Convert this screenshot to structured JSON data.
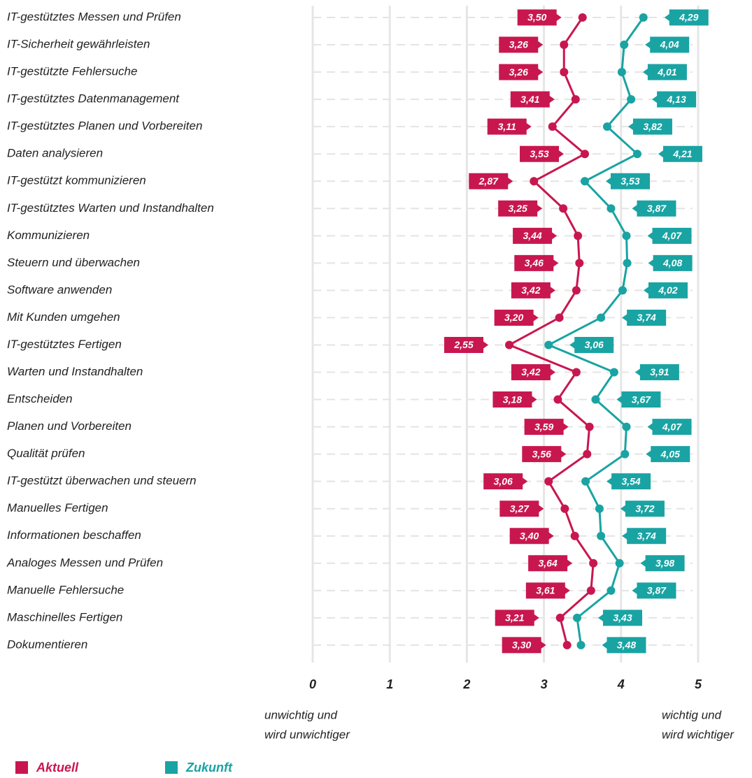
{
  "chart_data": {
    "type": "line",
    "orientation": "horizontal",
    "categories": [
      "IT-gestütztes Messen und Prüfen",
      "IT-Sicherheit gewährleisten",
      "IT-gestützte Fehlersuche",
      "IT-gestütztes Datenmanagement",
      "IT-gestütztes Planen und Vorbereiten",
      "Daten analysieren",
      "IT-gestützt kommunizieren",
      "IT-gestütztes Warten und Instandhalten",
      "Kommunizieren",
      "Steuern und überwachen",
      "Software anwenden",
      "Mit Kunden umgehen",
      "IT-gestütztes Fertigen",
      "Warten und Instandhalten",
      "Entscheiden",
      "Planen und Vorbereiten",
      "Qualität prüfen",
      "IT-gestützt überwachen und steuern",
      "Manuelles Fertigen",
      "Informationen beschaffen",
      "Analoges Messen und Prüfen",
      "Manuelle Fehlersuche",
      "Maschinelles Fertigen",
      "Dokumentieren"
    ],
    "series": [
      {
        "name": "Aktuell",
        "color": "#c8174f",
        "values": [
          3.5,
          3.26,
          3.26,
          3.41,
          3.11,
          3.53,
          2.87,
          3.25,
          3.44,
          3.46,
          3.42,
          3.2,
          2.55,
          3.42,
          3.18,
          3.59,
          3.56,
          3.06,
          3.27,
          3.4,
          3.64,
          3.61,
          3.21,
          3.3
        ],
        "value_labels": [
          "3,50",
          "3,26",
          "3,26",
          "3,41",
          "3,11",
          "3,53",
          "2,87",
          "3,25",
          "3,44",
          "3,46",
          "3,42",
          "3,20",
          "2,55",
          "3,42",
          "3,18",
          "3,59",
          "3,56",
          "3,06",
          "3,27",
          "3,40",
          "3,64",
          "3,61",
          "3,21",
          "3,30"
        ]
      },
      {
        "name": "Zukunft",
        "color": "#1aa3a3",
        "values": [
          4.29,
          4.04,
          4.01,
          4.13,
          3.82,
          4.21,
          3.53,
          3.87,
          4.07,
          4.08,
          4.02,
          3.74,
          3.06,
          3.91,
          3.67,
          4.07,
          4.05,
          3.54,
          3.72,
          3.74,
          3.98,
          3.87,
          3.43,
          3.48
        ],
        "value_labels": [
          "4,29",
          "4,04",
          "4,01",
          "4,13",
          "3,82",
          "4,21",
          "3,53",
          "3,87",
          "4,07",
          "4,08",
          "4,02",
          "3,74",
          "3,06",
          "3,91",
          "3,67",
          "4,07",
          "4,05",
          "3,54",
          "3,72",
          "3,74",
          "3,98",
          "3,87",
          "3,43",
          "3,48"
        ]
      }
    ],
    "xlim": [
      0,
      5
    ],
    "xticks": [
      0,
      1,
      2,
      3,
      4,
      5
    ],
    "grid": true,
    "axis_note_low": [
      "unwichtig und",
      "wird unwichtiger"
    ],
    "axis_note_high": [
      "wichtig und",
      "wird wichtiger"
    ]
  }
}
